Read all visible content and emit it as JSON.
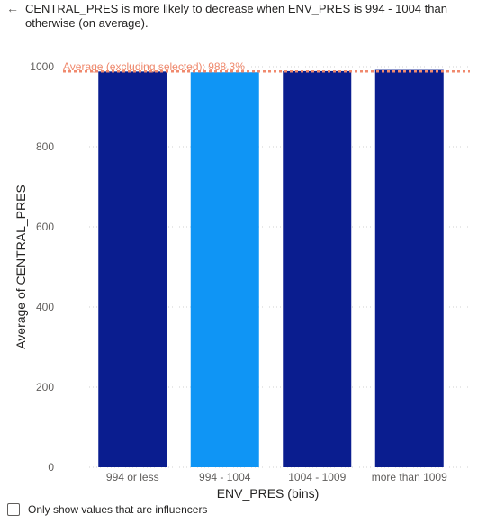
{
  "header": {
    "back_icon": "back-arrow-icon",
    "back_glyph": "←",
    "headline": "CENTRAL_PRES is more likely to decrease when ENV_PRES is 994 - 1004 than otherwise (on average)."
  },
  "chart_data": {
    "type": "bar",
    "categories": [
      "994 or less",
      "994 - 1004",
      "1004 - 1009",
      "more than 1009"
    ],
    "values": [
      988,
      986,
      989,
      992
    ],
    "highlight_index": 1,
    "colors": {
      "default": "#0a1d8f",
      "highlight": "#0f95f5",
      "reference_line": "#f08a6e",
      "grid": "#d0d0d0"
    },
    "xlabel": "ENV_PRES (bins)",
    "ylabel": "Average of CENTRAL_PRES",
    "ylim": [
      0,
      1000
    ],
    "yticks": [
      0,
      200,
      400,
      600,
      800,
      1000
    ],
    "reference_line": {
      "value": 988.3,
      "label": "Average (excluding selected): 988.3%"
    },
    "grid": true
  },
  "footer": {
    "checkbox_checked": false,
    "checkbox_label": "Only show values that are influencers"
  }
}
